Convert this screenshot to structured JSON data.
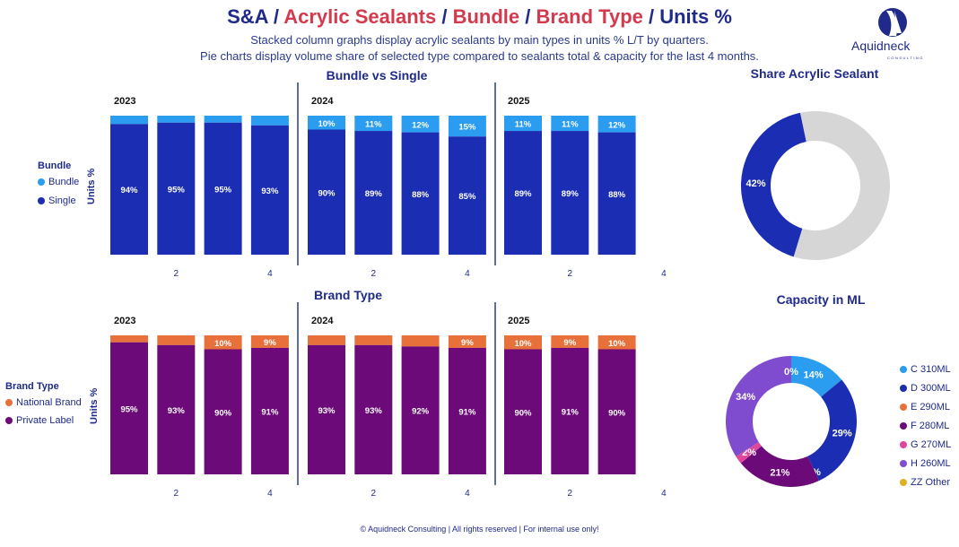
{
  "header": {
    "title_parts": [
      {
        "text": "S&A",
        "color": "#1f2a8a"
      },
      {
        "text": " / ",
        "color": "#1f2a8a"
      },
      {
        "text": "Acrylic Sealants",
        "color": "#d43a4e"
      },
      {
        "text": " / ",
        "color": "#1f2a8a"
      },
      {
        "text": "Bundle",
        "color": "#d43a4e"
      },
      {
        "text": " / ",
        "color": "#1f2a8a"
      },
      {
        "text": "Brand Type",
        "color": "#d43a4e"
      },
      {
        "text": " / ",
        "color": "#1f2a8a"
      },
      {
        "text": "Units %",
        "color": "#1f2a8a"
      }
    ],
    "subtitle1": "Stacked column graphs display acrylic sealants by main types in units % L/T by quarters.",
    "subtitle2": "Pie charts display volume share of selected type compared to sealants total & capacity for the last 4 months.",
    "logo_text": "Aquidneck",
    "logo_subtext": "CONSULTING"
  },
  "footer": "© Aquidneck Consulting  | All rights reserved | For internal use only!",
  "colors": {
    "single": "#1b2db3",
    "bundle": "#2a9df0",
    "national": "#e8703a",
    "private": "#6b0a78",
    "gray": "#d6d6d6",
    "divider": "#2a3a8c"
  },
  "chart_data": [
    {
      "type": "bar",
      "stacked": true,
      "title": "Bundle vs Single",
      "ylabel": "Units %",
      "legend_title": "Bundle",
      "years": [
        "2023",
        "2024",
        "2025"
      ],
      "x_tick_labels": [
        "2",
        "4",
        "2",
        "4",
        "2",
        "4"
      ],
      "categories": [
        "2023 Q1",
        "2023 Q2",
        "2023 Q3",
        "2023 Q4",
        "2024 Q1",
        "2024 Q2",
        "2024 Q3",
        "2024 Q4",
        "2025 Q1",
        "2025 Q2",
        "2025 Q3"
      ],
      "series": [
        {
          "name": "Bundle",
          "values": [
            6,
            5,
            5,
            7,
            10,
            11,
            12,
            15,
            11,
            11,
            12
          ],
          "labels": [
            "",
            "",
            "",
            "",
            "10%",
            "11%",
            "12%",
            "15%",
            "11%",
            "11%",
            "12%"
          ]
        },
        {
          "name": "Single",
          "values": [
            94,
            95,
            95,
            93,
            90,
            89,
            88,
            85,
            89,
            89,
            88
          ],
          "labels": [
            "94%",
            "95%",
            "95%",
            "93%",
            "90%",
            "89%",
            "88%",
            "85%",
            "89%",
            "89%",
            "88%"
          ]
        }
      ]
    },
    {
      "type": "bar",
      "stacked": true,
      "title": "Brand Type",
      "ylabel": "Units %",
      "legend_title": "Brand Type",
      "years": [
        "2023",
        "2024",
        "2025"
      ],
      "x_tick_labels": [
        "2",
        "4",
        "2",
        "4",
        "2",
        "4"
      ],
      "categories": [
        "2023 Q1",
        "2023 Q2",
        "2023 Q3",
        "2023 Q4",
        "2024 Q1",
        "2024 Q2",
        "2024 Q3",
        "2024 Q4",
        "2025 Q1",
        "2025 Q2",
        "2025 Q3"
      ],
      "series": [
        {
          "name": "National Brand",
          "values": [
            95,
            93,
            90,
            91,
            93,
            93,
            92,
            91,
            90,
            91,
            90
          ],
          "labels": [
            "95%",
            "93%",
            "90%",
            "91%",
            "93%",
            "93%",
            "92%",
            "91%",
            "90%",
            "91%",
            "90%"
          ]
        },
        {
          "name": "Private Label",
          "values": [
            5,
            7,
            10,
            9,
            7,
            7,
            8,
            9,
            10,
            9,
            10
          ],
          "labels": [
            "",
            "",
            "10%",
            "9%",
            "",
            "",
            "",
            "9%",
            "10%",
            "9%",
            "10%"
          ]
        }
      ]
    },
    {
      "type": "pie",
      "title": "Share Acrylic Sealant",
      "slices": [
        {
          "value": 42,
          "label": "42%",
          "color": "#1b2db3"
        },
        {
          "value": 58,
          "label": "",
          "color": "#d6d6d6"
        }
      ]
    },
    {
      "type": "pie",
      "title": "Capacity in ML",
      "slices": [
        {
          "name": "C 310ML",
          "value": 14,
          "label": "14%",
          "color": "#2a9df0"
        },
        {
          "name": "D 300ML",
          "value": 29,
          "label": "29%",
          "color": "#1b2db3"
        },
        {
          "name": "E 290ML",
          "value": 0,
          "label": "0%",
          "color": "#e8703a"
        },
        {
          "name": "F 280ML",
          "value": 21,
          "label": "21%",
          "color": "#6b0a78"
        },
        {
          "name": "G 270ML",
          "value": 2,
          "label": "2%",
          "color": "#e0479a"
        },
        {
          "name": "H 260ML",
          "value": 34,
          "label": "34%",
          "color": "#7f4ccf"
        },
        {
          "name": "ZZ Other",
          "value": 0,
          "label": "0%",
          "color": "#e0b020"
        }
      ]
    }
  ]
}
